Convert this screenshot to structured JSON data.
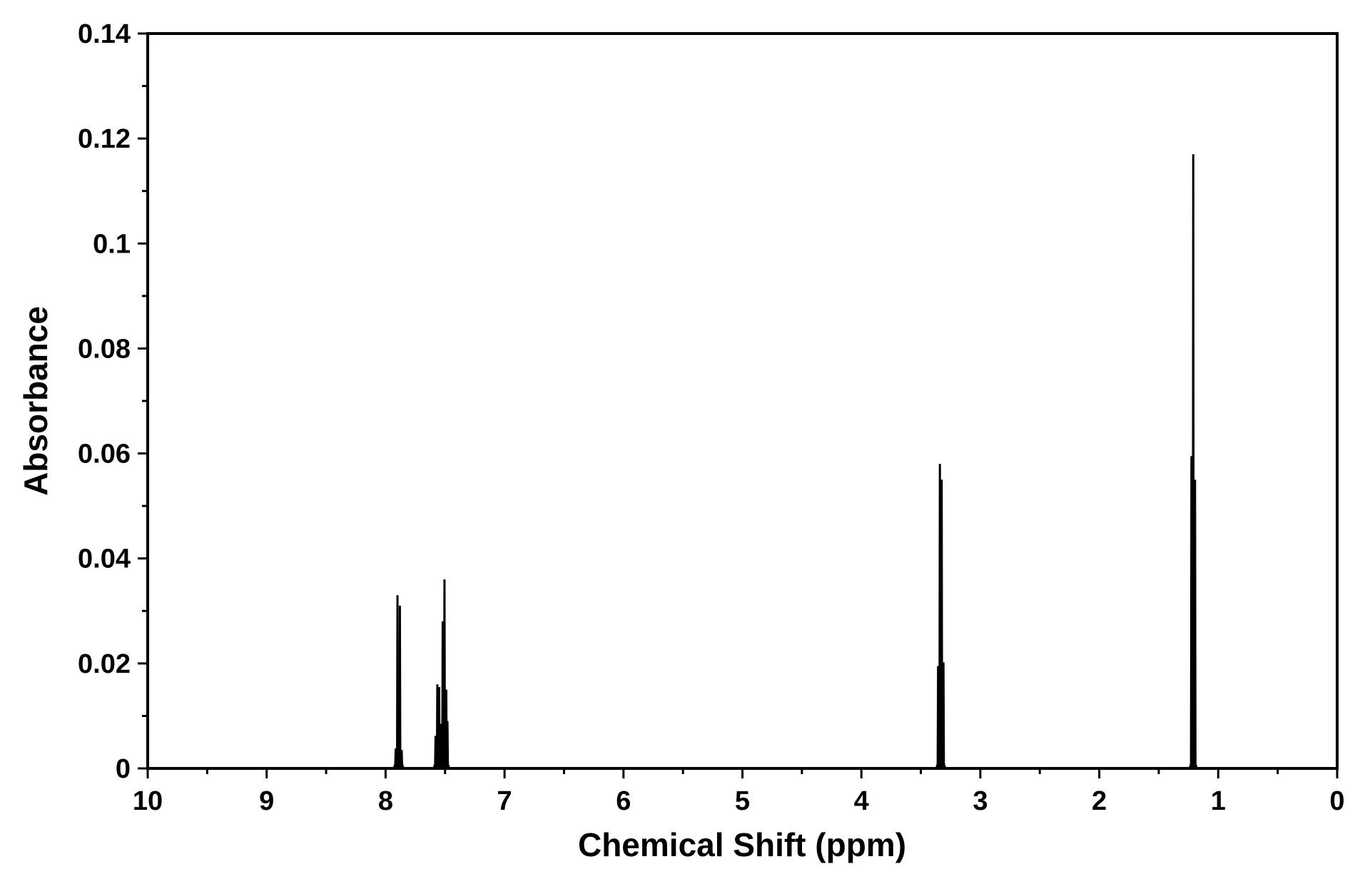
{
  "chart_data": {
    "type": "line",
    "title": "",
    "xlabel": "Chemical Shift (ppm)",
    "ylabel": "Absorbance",
    "xlim": [
      10,
      0
    ],
    "ylim": [
      0,
      0.14
    ],
    "x_reversed": true,
    "grid": false,
    "x_ticks": [
      10,
      9,
      8,
      7,
      6,
      5,
      4,
      3,
      2,
      1,
      0
    ],
    "x_tick_labels": [
      "10",
      "9",
      "8",
      "7",
      "6",
      "5",
      "4",
      "3",
      "2",
      "1",
      "0"
    ],
    "y_ticks": [
      0,
      0.02,
      0.04,
      0.06,
      0.08,
      0.1,
      0.12,
      0.14
    ],
    "y_tick_labels": [
      "0",
      "0.02",
      "0.04",
      "0.06",
      "0.08",
      "0.1",
      "0.12",
      "0.14"
    ],
    "line_color": "#000000",
    "peaks": [
      {
        "x": 7.915,
        "y": 0.0038
      },
      {
        "x": 7.9,
        "y": 0.033
      },
      {
        "x": 7.88,
        "y": 0.031
      },
      {
        "x": 7.865,
        "y": 0.0035
      },
      {
        "x": 7.58,
        "y": 0.0062
      },
      {
        "x": 7.565,
        "y": 0.016
      },
      {
        "x": 7.55,
        "y": 0.0155
      },
      {
        "x": 7.535,
        "y": 0.0085
      },
      {
        "x": 7.52,
        "y": 0.028
      },
      {
        "x": 7.505,
        "y": 0.036
      },
      {
        "x": 7.49,
        "y": 0.015
      },
      {
        "x": 7.48,
        "y": 0.009
      },
      {
        "x": 3.355,
        "y": 0.0195
      },
      {
        "x": 3.34,
        "y": 0.058
      },
      {
        "x": 3.325,
        "y": 0.055
      },
      {
        "x": 3.31,
        "y": 0.0202
      },
      {
        "x": 1.225,
        "y": 0.0595
      },
      {
        "x": 1.21,
        "y": 0.117
      },
      {
        "x": 1.195,
        "y": 0.055
      }
    ]
  }
}
